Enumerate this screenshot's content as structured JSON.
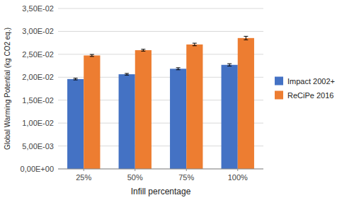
{
  "chart_data": {
    "type": "bar",
    "categories": [
      "25%",
      "50%",
      "75%",
      "100%"
    ],
    "series": [
      {
        "name": "Impact 2002+",
        "color": "#4472C4",
        "values": [
          0.0196,
          0.02065,
          0.02185,
          0.0227
        ],
        "errors": [
          0.00018,
          0.00018,
          0.00022,
          0.00025
        ]
      },
      {
        "name": "ReCiPe 2016",
        "color": "#ED7D31",
        "values": [
          0.02475,
          0.0259,
          0.02715,
          0.02855
        ],
        "errors": [
          0.00022,
          0.0002,
          0.00028,
          0.00038
        ]
      }
    ],
    "xlabel": "Infill percentage",
    "ylabel": "Global Warming Potential (kg CO2 eq.)",
    "ylim": [
      0,
      0.035
    ],
    "yticks": [
      {
        "value": 0.0,
        "label": "0,00E+00"
      },
      {
        "value": 0.005,
        "label": "5,00E-03"
      },
      {
        "value": 0.01,
        "label": "1,00E-02"
      },
      {
        "value": 0.015,
        "label": "1,50E-02"
      },
      {
        "value": 0.02,
        "label": "2,00E-02"
      },
      {
        "value": 0.025,
        "label": "2,50E-02"
      },
      {
        "value": 0.03,
        "label": "3,00E-02"
      },
      {
        "value": 0.035,
        "label": "3,50E-02"
      }
    ],
    "grid": true,
    "legend": "right"
  }
}
